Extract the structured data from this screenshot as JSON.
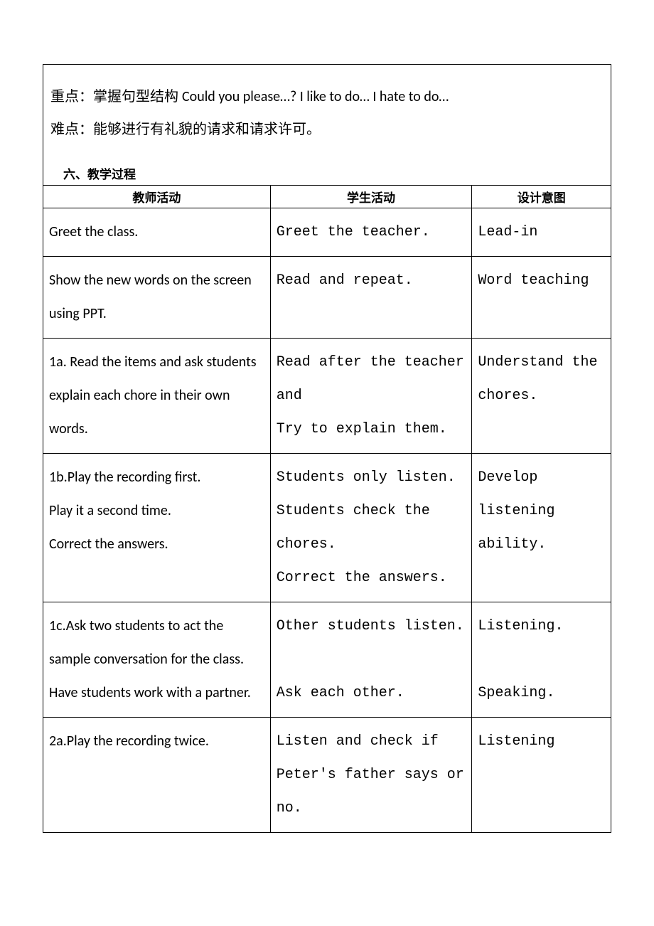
{
  "top": {
    "line1_prefix": "重点：掌握句型结构 ",
    "line1_en": "Could you please…? I like to do… I hate to do…",
    "line2": "难点：能够进行有礼貌的请求和请求许可。"
  },
  "section_title": "六、教学过程",
  "headers": {
    "teacher": "教师活动",
    "student": "学生活动",
    "intent": "设计意图"
  },
  "rows": [
    {
      "teacher": "Greet the class.",
      "student": "Greet the teacher.",
      "intent": "Lead-in"
    },
    {
      "teacher": "Show the new words on the screen using PPT.",
      "student": "Read and repeat.",
      "intent": "Word teaching"
    },
    {
      "teacher": "1a. Read the items and ask students explain each chore in their own words.",
      "student": "Read after the teacher and\nTry to explain them.",
      "intent": "Understand the chores."
    },
    {
      "teacher": "1b.Play the recording first.\nPlay it a second time.\nCorrect the answers.",
      "student": "Students only listen.\nStudents check the chores.\nCorrect the answers.",
      "intent": "Develop listening ability."
    },
    {
      "teacher": "1c.Ask two students to act the sample conversation for the class.\nHave students work with a partner.",
      "student": "Other students listen.\n\nAsk each other.",
      "intent": "Listening.\n\nSpeaking."
    },
    {
      "teacher": "2a.Play the recording twice.",
      "student": "Listen and check if Peter's father says or no.",
      "intent": "Listening"
    }
  ]
}
